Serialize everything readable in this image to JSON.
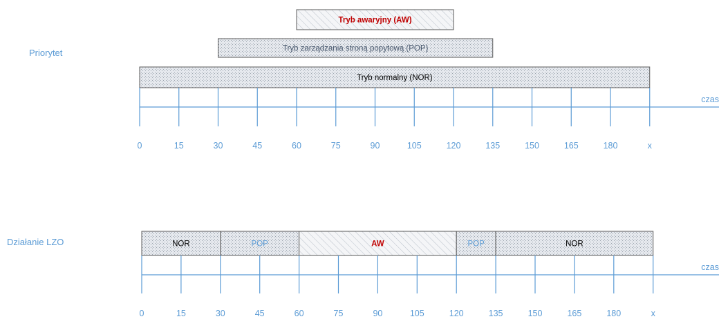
{
  "priority_label": "Priorytet",
  "operation_label": "Działanie LZO",
  "axis_label": "czas",
  "ticks": [
    "0",
    "15",
    "30",
    "45",
    "60",
    "75",
    "90",
    "105",
    "120",
    "135",
    "150",
    "165",
    "180",
    "x"
  ],
  "priority_bars": [
    {
      "id": "aw",
      "label": "Tryb awaryjny (AW)",
      "from": 60,
      "to": 120,
      "pattern": "hatch",
      "text_color": "#C00000",
      "bold": true
    },
    {
      "id": "pop",
      "label": "Tryb zarządzania stroną popytową (POP)",
      "from": 30,
      "to": 135,
      "pattern": "dots",
      "text_color": "#44546A",
      "bold": false
    },
    {
      "id": "nor",
      "label": "Tryb normalny (NOR)",
      "from": 0,
      "to": 195,
      "pattern": "dots",
      "text_color": "#000000",
      "bold": false
    }
  ],
  "operation_segments": [
    {
      "id": "nor1",
      "label": "NOR",
      "from": 0,
      "to": 30,
      "pattern": "dots",
      "text_color": "#000000",
      "bold": false
    },
    {
      "id": "pop1",
      "label": "POP",
      "from": 30,
      "to": 60,
      "pattern": "dots",
      "text_color": "#5B9BD5",
      "bold": false
    },
    {
      "id": "aw",
      "label": "AW",
      "from": 60,
      "to": 120,
      "pattern": "hatch",
      "text_color": "#C00000",
      "bold": true
    },
    {
      "id": "pop2",
      "label": "POP",
      "from": 120,
      "to": 135,
      "pattern": "dots",
      "text_color": "#5B9BD5",
      "bold": false
    },
    {
      "id": "nor2",
      "label": "NOR",
      "from": 135,
      "to": 195,
      "pattern": "dots",
      "text_color": "#000000",
      "bold": false
    }
  ],
  "colors": {
    "axis": "#5B9BD5",
    "aw_text": "#C00000",
    "border": "#595959"
  }
}
